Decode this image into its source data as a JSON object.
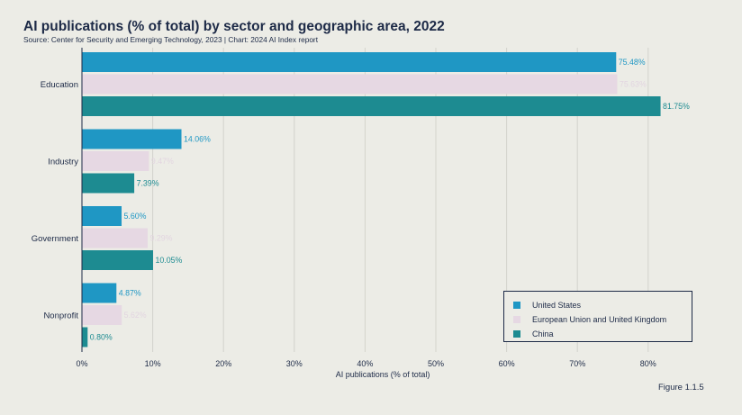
{
  "chart_data": {
    "type": "bar",
    "orientation": "horizontal",
    "title": "AI publications (% of total) by sector and geographic area, 2022",
    "subtitle": "Source: Center for Security and Emerging Technology, 2023 | Chart: 2024 AI Index report",
    "xlabel": "AI publications (% of total)",
    "ylabel": "",
    "categories": [
      "Education",
      "Industry",
      "Government",
      "Nonprofit"
    ],
    "series": [
      {
        "name": "United States",
        "values": [
          75.48,
          14.06,
          5.6,
          4.87
        ],
        "labels": [
          "75.48%",
          "14.06%",
          "5.60%",
          "4.87%"
        ],
        "color": "#1f97c4",
        "label_color": "#1f97c4"
      },
      {
        "name": "European Union and United Kingdom",
        "values": [
          75.63,
          9.47,
          9.29,
          5.62
        ],
        "labels": [
          "75.63%",
          "9.47%",
          "9.29%",
          "5.62%"
        ],
        "color": "#e6d8e3",
        "label_color": "#e2d5e0"
      },
      {
        "name": "China",
        "values": [
          81.75,
          7.39,
          10.05,
          0.8
        ],
        "labels": [
          "81.75%",
          "7.39%",
          "10.05%",
          "0.80%"
        ],
        "color": "#1d8b91",
        "label_color": "#1d8b91"
      }
    ],
    "xlim": [
      0,
      85
    ],
    "xticks": [
      "0%",
      "10%",
      "20%",
      "30%",
      "40%",
      "50%",
      "60%",
      "70%",
      "80%"
    ],
    "xtick_values": [
      0,
      10,
      20,
      30,
      40,
      50,
      60,
      70,
      80
    ],
    "grid": true,
    "legend_position": "bottom-right"
  },
  "figure_label": "Figure 1.1.5",
  "colors": {
    "background": "#ecece6",
    "text": "#1d2a47",
    "grid": "#d3d3cc"
  }
}
